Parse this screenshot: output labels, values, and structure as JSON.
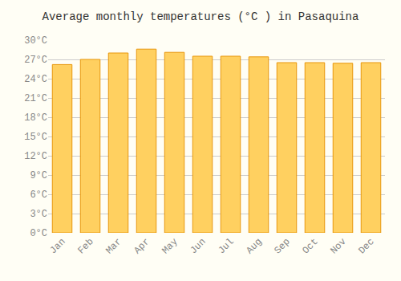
{
  "chart_data": {
    "type": "bar",
    "title": "Average monthly temperatures (°C ) in Pasaquina",
    "categories": [
      "Jan",
      "Feb",
      "Mar",
      "Apr",
      "May",
      "Jun",
      "Jul",
      "Aug",
      "Sep",
      "Oct",
      "Nov",
      "Dec"
    ],
    "values": [
      26.2,
      27.0,
      28.0,
      28.6,
      28.1,
      27.5,
      27.5,
      27.4,
      26.5,
      26.5,
      26.4,
      26.5
    ],
    "color": "#FFD060",
    "ylim": [
      0,
      30
    ],
    "yticks": [
      {
        "value": 0,
        "label": "0°C"
      },
      {
        "value": 3,
        "label": "3°C"
      },
      {
        "value": 6,
        "label": "6°C"
      },
      {
        "value": 9,
        "label": "9°C"
      },
      {
        "value": 12,
        "label": "12°C"
      },
      {
        "value": 15,
        "label": "15°C"
      },
      {
        "value": 18,
        "label": "18°C"
      },
      {
        "value": 21,
        "label": "21°C"
      },
      {
        "value": 24,
        "label": "24°C"
      },
      {
        "value": 27,
        "label": "27°C"
      },
      {
        "value": 30,
        "label": "30°C"
      }
    ],
    "grid": true
  }
}
